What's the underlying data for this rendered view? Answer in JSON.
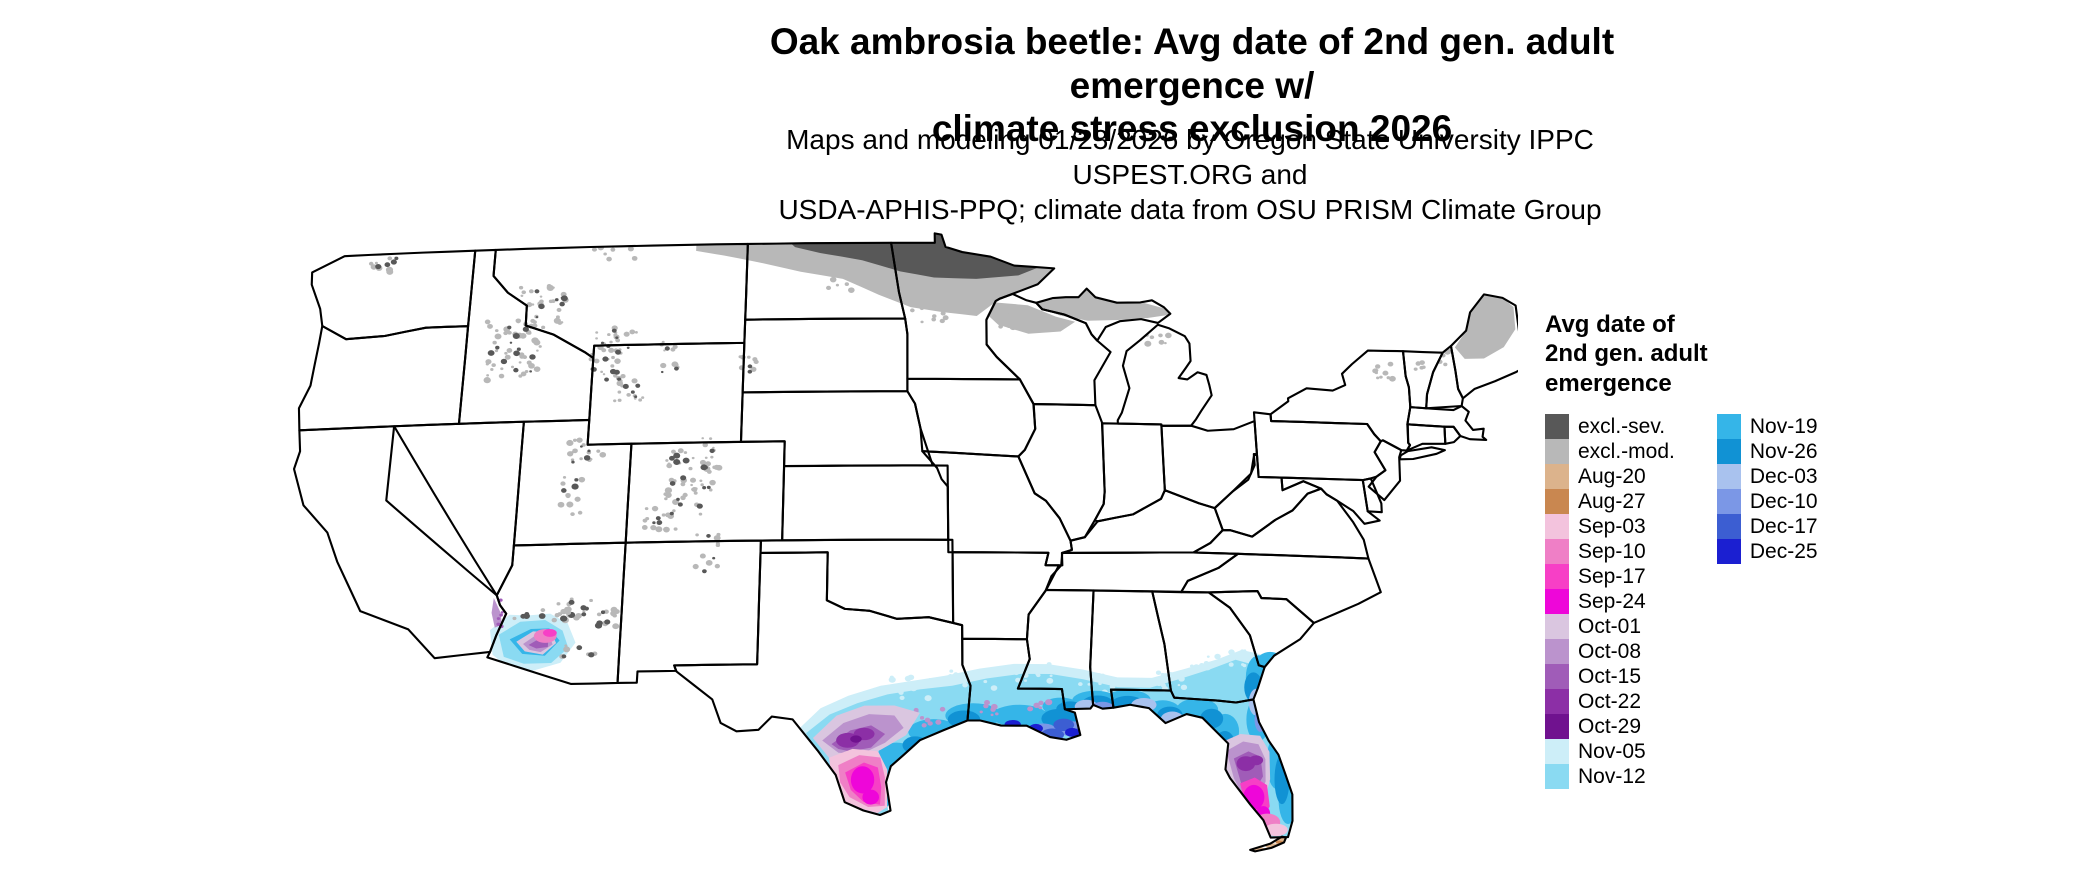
{
  "header": {
    "title": "Oak ambrosia beetle: Avg date of 2nd gen. adult emergence w/\nclimate stress exclusion 2026",
    "subtitle": "Maps and modeling 01/23/2026 by Oregon State University IPPC USPEST.ORG and\nUSDA-APHIS-PPQ; climate data from OSU PRISM Climate Group"
  },
  "map": {
    "region": "Contiguous United States",
    "land_fill": "#ffffff",
    "border_color": "#000000"
  },
  "palette": {
    "excl_sev": "#585858",
    "excl_mod": "#b8b8b8",
    "aug20": "#dcb38c",
    "aug27": "#c98750",
    "sep03": "#f3c3dd",
    "sep10": "#ef7fc6",
    "sep17": "#f73fc6",
    "sep24": "#ee06d9",
    "oct01": "#dac6e0",
    "oct08": "#bb93cd",
    "oct15": "#a05cb8",
    "oct22": "#8c2fa6",
    "oct29": "#70128f",
    "nov05": "#cdeef8",
    "nov12": "#8adaf2",
    "nov19": "#35b5e8",
    "nov26": "#1192d4",
    "dec03": "#a9c2ee",
    "dec10": "#7b97e6",
    "dec17": "#3c5ed2",
    "dec25": "#1b1fd1"
  },
  "legend": {
    "title": "Avg date of\n2nd gen. adult\nemergence",
    "columns": [
      [
        {
          "label": "excl.-sev.",
          "key": "excl_sev"
        },
        {
          "label": "excl.-mod.",
          "key": "excl_mod"
        },
        {
          "label": "Aug-20",
          "key": "aug20"
        },
        {
          "label": "Aug-27",
          "key": "aug27"
        },
        {
          "label": "Sep-03",
          "key": "sep03"
        },
        {
          "label": "Sep-10",
          "key": "sep10"
        },
        {
          "label": "Sep-17",
          "key": "sep17"
        },
        {
          "label": "Sep-24",
          "key": "sep24"
        },
        {
          "label": "Oct-01",
          "key": "oct01"
        },
        {
          "label": "Oct-08",
          "key": "oct08"
        },
        {
          "label": "Oct-15",
          "key": "oct15"
        },
        {
          "label": "Oct-22",
          "key": "oct22"
        },
        {
          "label": "Oct-29",
          "key": "oct29"
        },
        {
          "label": "Nov-05",
          "key": "nov05"
        },
        {
          "label": "Nov-12",
          "key": "nov12"
        }
      ],
      [
        {
          "label": "Nov-19",
          "key": "nov19"
        },
        {
          "label": "Nov-26",
          "key": "nov26"
        },
        {
          "label": "Dec-03",
          "key": "dec03"
        },
        {
          "label": "Dec-10",
          "key": "dec10"
        },
        {
          "label": "Dec-17",
          "key": "dec17"
        },
        {
          "label": "Dec-25",
          "key": "dec25"
        }
      ]
    ]
  }
}
